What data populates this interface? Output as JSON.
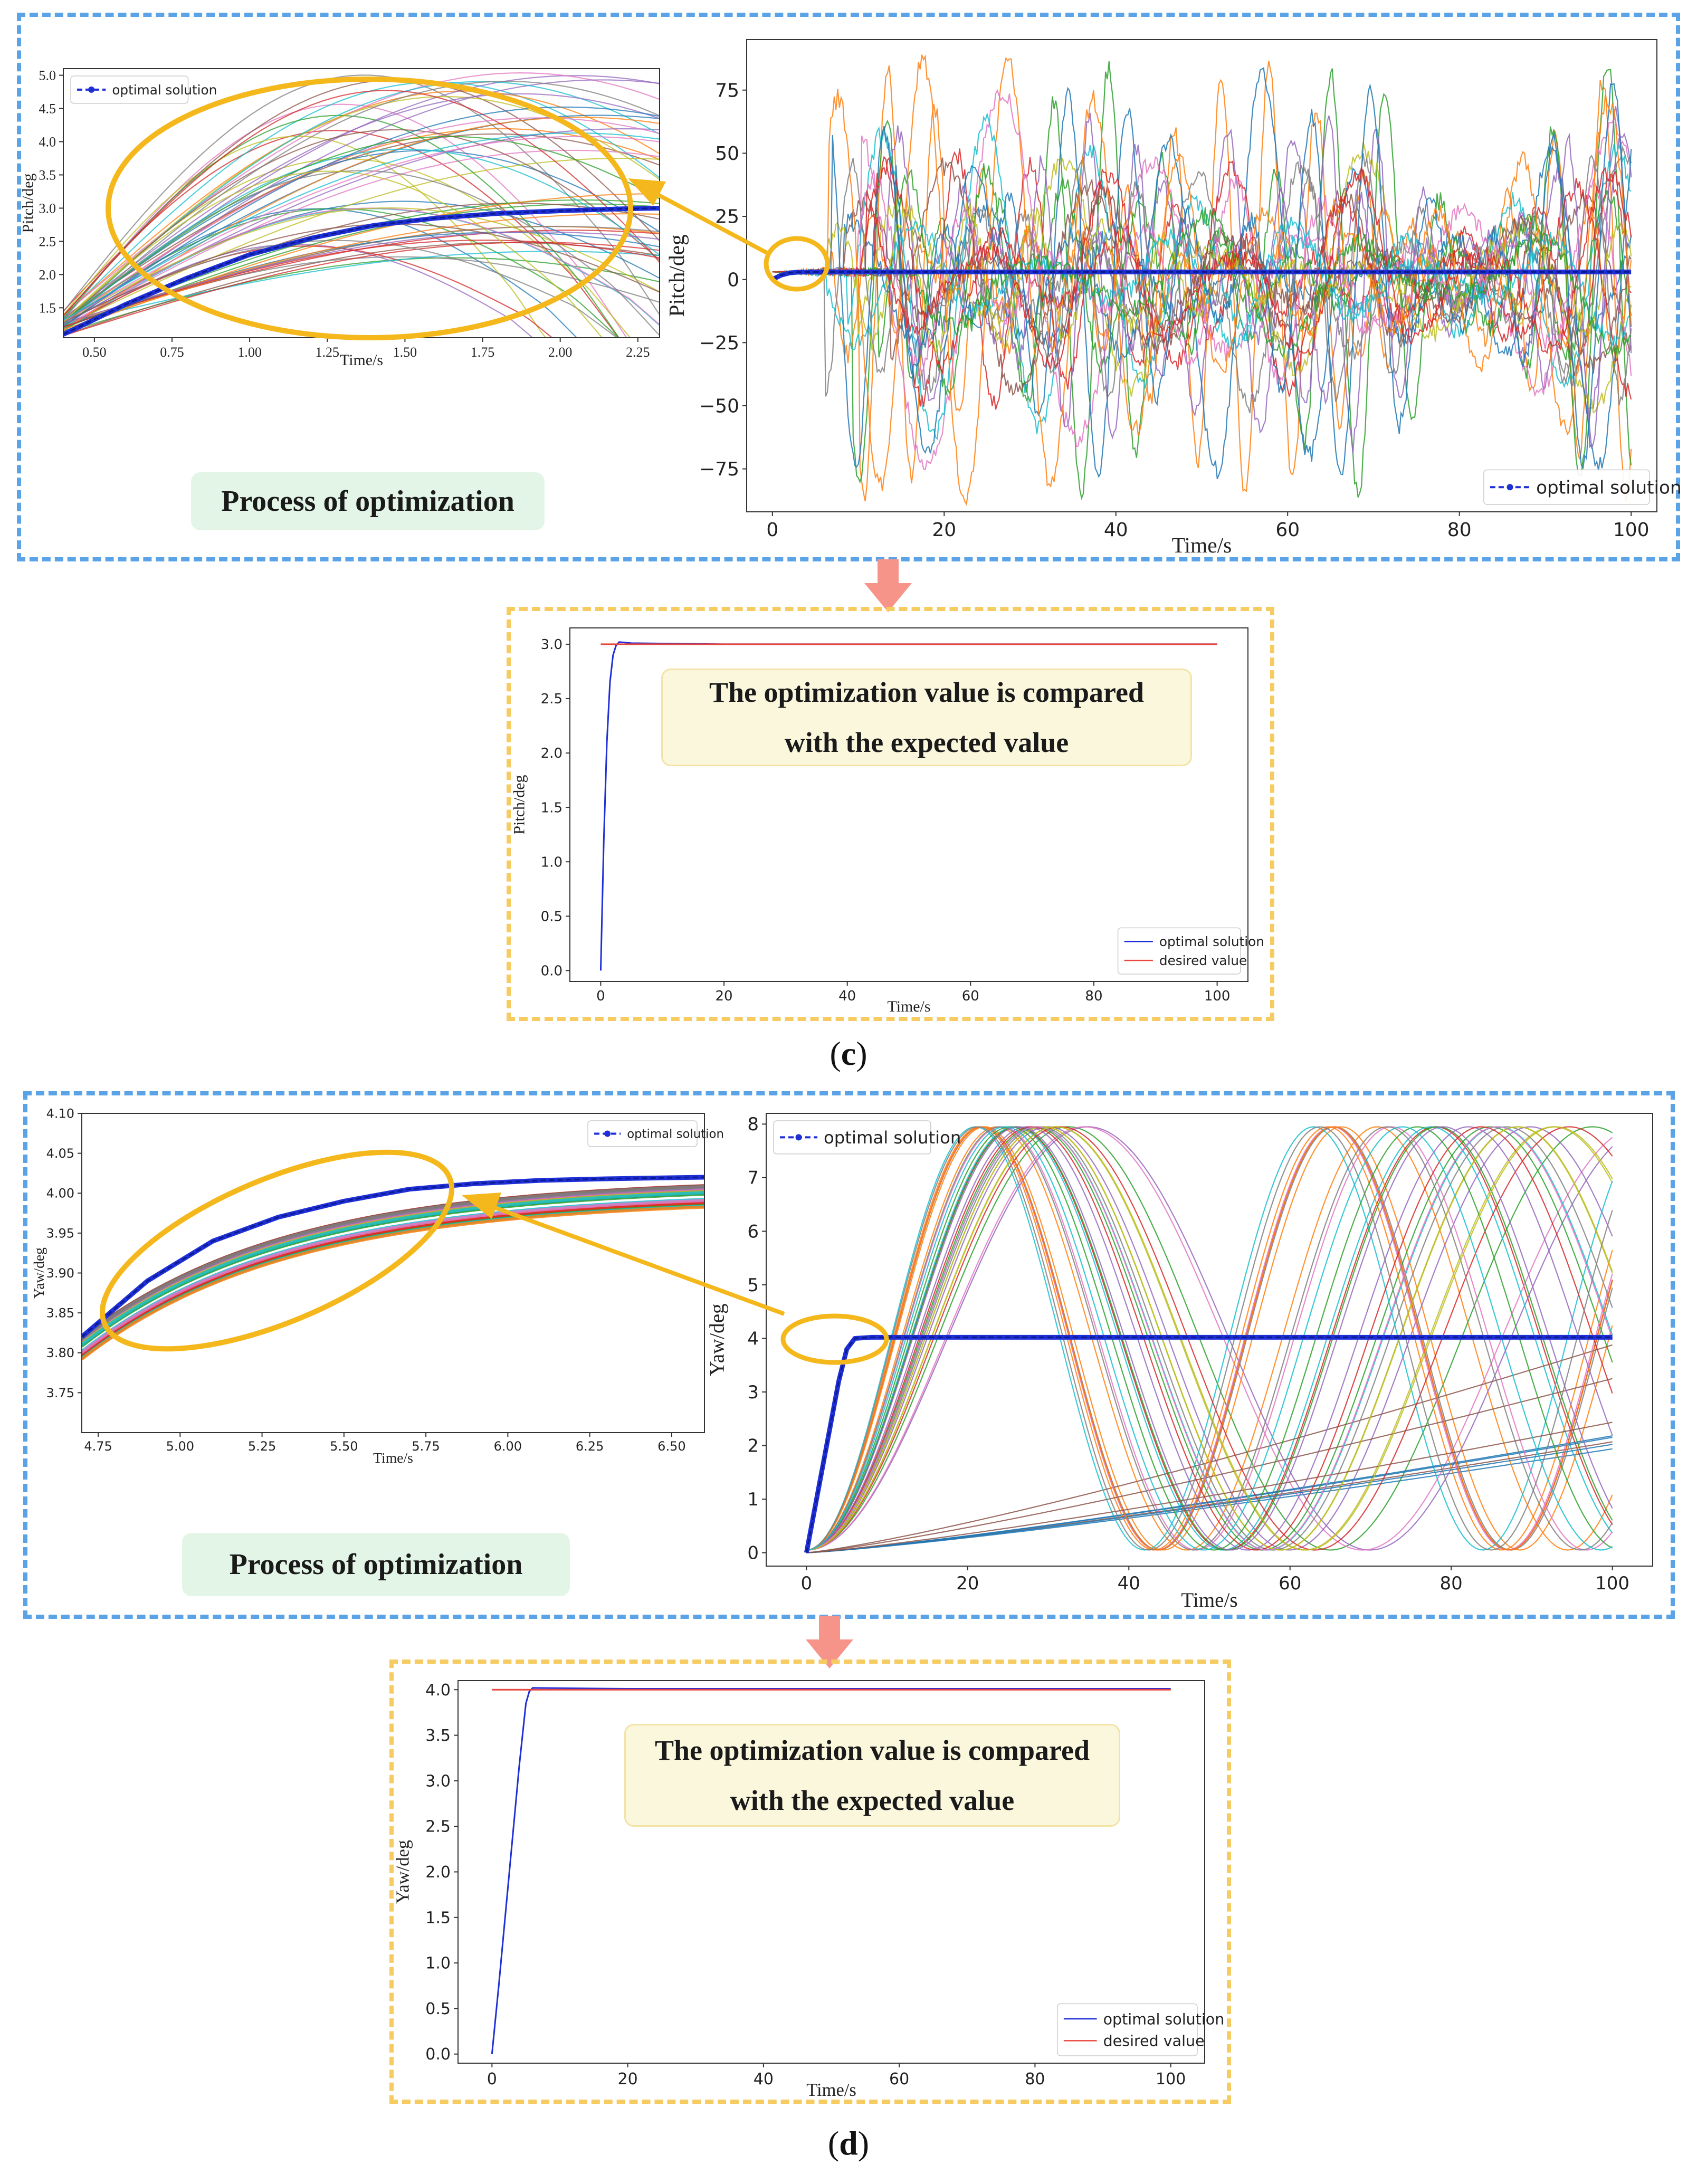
{
  "colors": {
    "frame_blue": "#5aa3e6",
    "frame_yellow": "#f6cc62",
    "highlight": "#f5b81c",
    "optimal": "#1f2fd8",
    "desired": "#e8473f",
    "arrow_pink": "#f7948a",
    "palette": [
      "#1f77b4",
      "#ff7f0e",
      "#2ca02c",
      "#d62728",
      "#9467bd",
      "#8c564b",
      "#e377c2",
      "#7f7f7f",
      "#bcbd22",
      "#17becf"
    ]
  },
  "labels": {
    "process": "Process of optimization",
    "compare_line1": "The optimization value is compared",
    "compare_line2": "with the expected value",
    "caption_c": "c",
    "caption_d": "d",
    "paren_open": "(",
    "paren_close": ")"
  },
  "chart_data": [
    {
      "id": "pitch_zoom",
      "type": "line",
      "title": "",
      "xlabel": "Time/s",
      "ylabel": "Pitch/deg",
      "xlim": [
        0.4,
        2.32
      ],
      "ylim": [
        1.05,
        5.1
      ],
      "xticks": [
        0.5,
        0.75,
        1.0,
        1.25,
        1.5,
        1.75,
        2.0,
        2.25
      ],
      "xtick_labels": [
        "0.50",
        "0.75",
        "1.00",
        "1.25",
        "1.50",
        "1.75",
        "2.00",
        "2.25"
      ],
      "yticks": [
        1.5,
        2.0,
        2.5,
        3.0,
        3.5,
        4.0,
        4.5,
        5.0
      ],
      "ytick_labels": [
        "1.5",
        "2.0",
        "2.5",
        "3.0",
        "3.5",
        "4.0",
        "4.5",
        "5.0"
      ],
      "legend": {
        "position": "top-left",
        "entries": [
          "optimal solution"
        ]
      },
      "series": [
        {
          "name": "optimal solution",
          "style": "dashed-dot",
          "color": "#1f2fd8",
          "x": [
            0.4,
            0.6,
            0.8,
            1.0,
            1.2,
            1.4,
            1.6,
            1.8,
            2.0,
            2.2,
            2.32
          ],
          "y": [
            1.1,
            1.55,
            1.95,
            2.3,
            2.55,
            2.74,
            2.85,
            2.92,
            2.96,
            2.99,
            3.0
          ]
        }
      ],
      "background_family": {
        "description": "many candidate trajectories",
        "count": 60
      }
    },
    {
      "id": "pitch_full",
      "type": "line",
      "title": "",
      "xlabel": "Time/s",
      "ylabel": "Pitch/deg",
      "xlim": [
        -3,
        103
      ],
      "ylim": [
        -92,
        95
      ],
      "xticks": [
        0,
        20,
        40,
        60,
        80,
        100
      ],
      "xtick_labels": [
        "0",
        "20",
        "40",
        "60",
        "80",
        "100"
      ],
      "yticks": [
        -75,
        -50,
        -25,
        0,
        25,
        50,
        75
      ],
      "ytick_labels": [
        "−75",
        "−50",
        "−25",
        "0",
        "25",
        "50",
        "75"
      ],
      "legend": {
        "position": "bottom-right",
        "entries": [
          "optimal solution"
        ]
      },
      "series": [
        {
          "name": "optimal solution",
          "style": "dashed-dot",
          "color": "#1f2fd8",
          "x": [
            0,
            1,
            2,
            3,
            5,
            10,
            20,
            40,
            60,
            80,
            100
          ],
          "y": [
            0,
            1.7,
            2.6,
            2.9,
            3.0,
            3.0,
            3.0,
            3.0,
            3.0,
            3.0,
            3.0
          ]
        }
      ],
      "background_family": {
        "description": "oscillating candidate trajectories",
        "count": 24,
        "amplitude_max": 90
      }
    },
    {
      "id": "pitch_compare",
      "type": "line",
      "title": "",
      "xlabel": "Time/s",
      "ylabel": "Pitch/deg",
      "xlim": [
        -5,
        105
      ],
      "ylim": [
        -0.1,
        3.15
      ],
      "xticks": [
        0,
        20,
        40,
        60,
        80,
        100
      ],
      "xtick_labels": [
        "0",
        "20",
        "40",
        "60",
        "80",
        "100"
      ],
      "yticks": [
        0.0,
        0.5,
        1.0,
        1.5,
        2.0,
        2.5,
        3.0
      ],
      "ytick_labels": [
        "0.0",
        "0.5",
        "1.0",
        "1.5",
        "2.0",
        "2.5",
        "3.0"
      ],
      "legend": {
        "position": "bottom-right",
        "entries": [
          "optimal solution",
          "desired value"
        ]
      },
      "series": [
        {
          "name": "optimal solution",
          "color": "#1f2fd8",
          "x": [
            0,
            0.5,
            1,
            1.5,
            2,
            2.5,
            3,
            5,
            20,
            100
          ],
          "y": [
            0,
            1.2,
            2.1,
            2.65,
            2.9,
            2.99,
            3.02,
            3.01,
            3.0,
            3.0
          ]
        },
        {
          "name": "desired value",
          "color": "#e8473f",
          "x": [
            0,
            100
          ],
          "y": [
            3.0,
            3.0
          ]
        }
      ]
    },
    {
      "id": "yaw_zoom",
      "type": "line",
      "title": "",
      "xlabel": "Time/s",
      "ylabel": "Yaw/deg",
      "xlim": [
        4.7,
        6.6
      ],
      "ylim": [
        3.7,
        4.1
      ],
      "xticks": [
        4.75,
        5.0,
        5.25,
        5.5,
        5.75,
        6.0,
        6.25,
        6.5
      ],
      "xtick_labels": [
        "4.75",
        "5.00",
        "5.25",
        "5.50",
        "5.75",
        "6.00",
        "6.25",
        "6.50"
      ],
      "yticks": [
        3.75,
        3.8,
        3.85,
        3.9,
        3.95,
        4.0,
        4.05,
        4.1
      ],
      "ytick_labels": [
        "3.75",
        "3.80",
        "3.85",
        "3.90",
        "3.95",
        "4.00",
        "4.05",
        "4.10"
      ],
      "legend": {
        "position": "top-right",
        "entries": [
          "optimal solution"
        ]
      },
      "series": [
        {
          "name": "optimal solution",
          "style": "dashed-dot",
          "color": "#1f2fd8",
          "x": [
            4.7,
            4.9,
            5.1,
            5.3,
            5.5,
            5.7,
            5.9,
            6.1,
            6.3,
            6.6
          ],
          "y": [
            3.82,
            3.89,
            3.94,
            3.97,
            3.99,
            4.005,
            4.012,
            4.016,
            4.018,
            4.02
          ]
        }
      ],
      "background_family": {
        "description": "dense band of candidate trajectories",
        "count": 30
      }
    },
    {
      "id": "yaw_full",
      "type": "line",
      "title": "",
      "xlabel": "Time/s",
      "ylabel": "Yaw/deg",
      "xlim": [
        -5,
        105
      ],
      "ylim": [
        -0.25,
        8.2
      ],
      "xticks": [
        0,
        20,
        40,
        60,
        80,
        100
      ],
      "xtick_labels": [
        "0",
        "20",
        "40",
        "60",
        "80",
        "100"
      ],
      "yticks": [
        0,
        1,
        2,
        3,
        4,
        5,
        6,
        7,
        8
      ],
      "ytick_labels": [
        "0",
        "1",
        "2",
        "3",
        "4",
        "5",
        "6",
        "7",
        "8"
      ],
      "legend": {
        "position": "top-left",
        "entries": [
          "optimal solution"
        ]
      },
      "series": [
        {
          "name": "optimal solution",
          "style": "dashed-dot",
          "color": "#1f2fd8",
          "x": [
            0,
            1,
            2,
            3,
            4,
            5,
            6,
            8,
            20,
            60,
            100
          ],
          "y": [
            0,
            0.8,
            1.6,
            2.4,
            3.2,
            3.8,
            4.0,
            4.02,
            4.02,
            4.02,
            4.02
          ]
        }
      ],
      "background_family": {
        "description": "sinusoidal candidate trajectories",
        "count": 40,
        "amplitude_max": 8
      }
    },
    {
      "id": "yaw_compare",
      "type": "line",
      "title": "",
      "xlabel": "Time/s",
      "ylabel": "Yaw/deg",
      "xlim": [
        -5,
        105
      ],
      "ylim": [
        -0.1,
        4.1
      ],
      "xticks": [
        0,
        20,
        40,
        60,
        80,
        100
      ],
      "xtick_labels": [
        "0",
        "20",
        "40",
        "60",
        "80",
        "100"
      ],
      "yticks": [
        0.0,
        0.5,
        1.0,
        1.5,
        2.0,
        2.5,
        3.0,
        3.5,
        4.0
      ],
      "ytick_labels": [
        "0.0",
        "0.5",
        "1.0",
        "1.5",
        "2.0",
        "2.5",
        "3.0",
        "3.5",
        "4.0"
      ],
      "legend": {
        "position": "bottom-right",
        "entries": [
          "optimal solution",
          "desired value"
        ]
      },
      "series": [
        {
          "name": "optimal solution",
          "color": "#1f2fd8",
          "x": [
            0,
            1,
            2,
            3,
            4,
            5,
            5.5,
            6,
            20,
            100
          ],
          "y": [
            0,
            0.75,
            1.55,
            2.35,
            3.15,
            3.85,
            3.98,
            4.02,
            4.01,
            4.01
          ]
        },
        {
          "name": "desired value",
          "color": "#e8473f",
          "x": [
            0,
            100
          ],
          "y": [
            4.0,
            4.0
          ]
        }
      ]
    }
  ]
}
